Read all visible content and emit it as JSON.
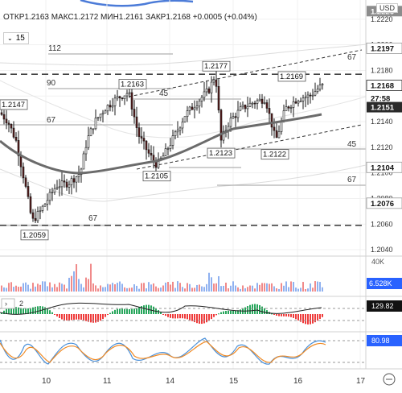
{
  "header": {
    "ohlc": "ОТКР1.2163 МАКС1.2172 МИН1.2161 ЗАКР1.2168 +0.0005 (+0.04%)",
    "interval": "15",
    "currency": "USD"
  },
  "chart_data": {
    "type": "candlestick",
    "symbol_quote": "USD",
    "x_ticks": [
      "10",
      "11",
      "14",
      "15",
      "16",
      "17"
    ],
    "y_ticks": [
      "1.2220",
      "1.2200",
      "1.2180",
      "1.2160",
      "1.2140",
      "1.2120",
      "1.2100",
      "1.2080",
      "1.2060",
      "1.2040"
    ],
    "ylim": [
      1.2035,
      1.2235
    ],
    "price_badges": [
      {
        "label": "1.2226",
        "value": 1.2226,
        "style": "gray"
      },
      {
        "label": "1.2197",
        "value": 1.2197,
        "style": "light"
      },
      {
        "label": "1.2168",
        "value": 1.2168,
        "style": "last"
      },
      {
        "label": "27:58",
        "value": 1.2158,
        "style": "timer"
      },
      {
        "label": "1.2151",
        "value": 1.2151,
        "style": "dark"
      },
      {
        "label": "1.2104",
        "value": 1.2104,
        "style": "light"
      },
      {
        "label": "1.2076",
        "value": 1.2076,
        "style": "light"
      }
    ],
    "price_labels": [
      {
        "text": "1.2147",
        "value": 1.2147
      },
      {
        "text": "1.2163",
        "value": 1.2163
      },
      {
        "text": "1.2177",
        "value": 1.2177
      },
      {
        "text": "1.2169",
        "value": 1.2169
      },
      {
        "text": "1.2105",
        "value": 1.2105
      },
      {
        "text": "1.2123",
        "value": 1.2123
      },
      {
        "text": "1.2122",
        "value": 1.2122
      },
      {
        "text": "1.2059",
        "value": 1.2059
      }
    ],
    "level_numbers": [
      "112",
      "90",
      "67",
      "45",
      "45",
      "67",
      "67",
      "67"
    ],
    "key_levels": [
      1.2177,
      1.2059
    ],
    "moving_average": "dark gray",
    "colors": {
      "up": "#26a69a",
      "down": "#ef5350",
      "candle": "#000000",
      "accent": "#2962ff"
    },
    "volume": {
      "scale_label": "40K",
      "last_value": "6.528K"
    },
    "histogram_indicator": {
      "period": "2",
      "last_value": "129.82"
    },
    "stochastic": {
      "last_value": "80.98"
    }
  }
}
